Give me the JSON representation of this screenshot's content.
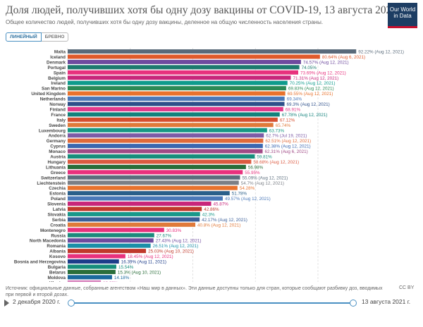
{
  "header": {
    "title": "Доля людей, получивших хотя бы одну дозу вакцины от COVID-19, 13 августа 2021 г.",
    "subtitle": "Общее количество людей, получивших хотя бы одну дозу вакцины, деленное на общую численность населения страны.",
    "logo_line1": "Our World",
    "logo_line2": "in Data"
  },
  "tabs": {
    "linear": "ЛИНЕЙНЫЙ",
    "log": "БРЕВНО"
  },
  "footer": {
    "source": "Источник: официальные данные, собранные агентством «Наш мир в данных». Эти данные доступны только для стран, которые сообщают разбивку доз, вводимых при первой и второй дозах.",
    "license": "CC BY"
  },
  "timeline": {
    "start_label": "2 декабря 2020 г.",
    "end_label": "13 августа 2021 г."
  },
  "chart_data": {
    "type": "bar",
    "orientation": "horizontal",
    "xlim": [
      0,
      95
    ],
    "x_ticks": [
      0,
      20,
      40,
      60,
      80
    ],
    "x_tick_labels": [
      "0%",
      "20%",
      "40%",
      "60%",
      "80%"
    ],
    "bars": [
      {
        "country": "Malta",
        "value": 92.22,
        "label": "92.22% (Aug 12, 2021)",
        "color": "#596a7a"
      },
      {
        "country": "Iceland",
        "value": 80.64,
        "label": "80.64% (Aug 6, 2021)",
        "color": "#e05a2b"
      },
      {
        "country": "Denmark",
        "value": 74.57,
        "label": "74.57% (Aug 12, 2021)",
        "color": "#6e4a9e"
      },
      {
        "country": "Portugal",
        "value": 74.05,
        "label": "74.05%",
        "color": "#1c7a6e"
      },
      {
        "country": "Spain",
        "value": 73.69,
        "label": "73.69% (Aug 12, 2021)",
        "color": "#e8317d"
      },
      {
        "country": "Belgium",
        "value": 71.31,
        "label": "71.31% (Aug 12, 2021)",
        "color": "#c8267a"
      },
      {
        "country": "Ireland",
        "value": 70.25,
        "label": "70.25% (Aug 12, 2021)",
        "color": "#0e9b8c"
      },
      {
        "country": "San Marino",
        "value": 69.83,
        "label": "69.83% (Aug 12, 2021)",
        "color": "#2c8a56"
      },
      {
        "country": "United Kingdom",
        "value": 69.55,
        "label": "69.55% (Aug 12, 2021)",
        "color": "#e8722d"
      },
      {
        "country": "Netherlands",
        "value": 69.34,
        "label": "69.34%",
        "color": "#4a78b8"
      },
      {
        "country": "Norway",
        "value": 69.3,
        "label": "69.3% (Aug 12, 2021)",
        "color": "#2d4f8a"
      },
      {
        "country": "Finland",
        "value": 68.91,
        "label": "68.91%",
        "color": "#e2388a"
      },
      {
        "country": "France",
        "value": 67.78,
        "label": "67.78% (Aug 12, 2021)",
        "color": "#13827c"
      },
      {
        "country": "Italy",
        "value": 67.12,
        "label": "67.12%",
        "color": "#d64f2f"
      },
      {
        "country": "Sweden",
        "value": 65.74,
        "label": "65.74%",
        "color": "#e07a3a"
      },
      {
        "country": "Luxembourg",
        "value": 63.73,
        "label": "63.73%",
        "color": "#169883"
      },
      {
        "country": "Andorra",
        "value": 62.7,
        "label": "62.7% (Jul 19, 2021)",
        "color": "#7d5ba6"
      },
      {
        "country": "Germany",
        "value": 62.51,
        "label": "62.51% (Aug 12, 2021)",
        "color": "#e06a3a"
      },
      {
        "country": "Cyprus",
        "value": 62.38,
        "label": "62.38% (Aug 12, 2021)",
        "color": "#3a67b0"
      },
      {
        "country": "Monaco",
        "value": 62.31,
        "label": "62.31% (Aug 6, 2021)",
        "color": "#a04a86"
      },
      {
        "country": "Austria",
        "value": 59.81,
        "label": "59.81%",
        "color": "#168e7c"
      },
      {
        "country": "Hungary",
        "value": 58.68,
        "label": "58.68% (Aug 12, 2021)",
        "color": "#dc5a40"
      },
      {
        "country": "Lithuania",
        "value": 56.98,
        "label": "56.98%",
        "color": "#2a6e3a"
      },
      {
        "country": "Greece",
        "value": 55.95,
        "label": "55.95%",
        "color": "#e8317d"
      },
      {
        "country": "Switzerland",
        "value": 55.09,
        "label": "55.09% (Aug 12, 2021)",
        "color": "#5b6d7d"
      },
      {
        "country": "Liechtenstein",
        "value": 54.7,
        "label": "54.7% (Aug 12, 2021)",
        "color": "#7b7f86"
      },
      {
        "country": "Czechia",
        "value": 54.28,
        "label": "54.28%",
        "color": "#e8722d"
      },
      {
        "country": "Estonia",
        "value": 51.78,
        "label": "51.78%",
        "color": "#2a5f8a"
      },
      {
        "country": "Poland",
        "value": 49.57,
        "label": "49.57% (Aug 12, 2021)",
        "color": "#4a78b8"
      },
      {
        "country": "Slovenia",
        "value": 45.87,
        "label": "45.87%",
        "color": "#c8267a"
      },
      {
        "country": "Latvia",
        "value": 42.86,
        "label": "42.86%",
        "color": "#c0392b"
      },
      {
        "country": "Slovakia",
        "value": 42.3,
        "label": "42.3%",
        "color": "#18988a"
      },
      {
        "country": "Serbia",
        "value": 42.17,
        "label": "42.17% (Aug 12, 2021)",
        "color": "#3a5f9a"
      },
      {
        "country": "Croatia",
        "value": 40.8,
        "label": "40.8% (Aug 12, 2021)",
        "color": "#e07a3a"
      },
      {
        "country": "Montenegro",
        "value": 30.83,
        "label": "30.83%",
        "color": "#e8317d"
      },
      {
        "country": "Russia",
        "value": 27.67,
        "label": "27.67%",
        "color": "#1c8a7c"
      },
      {
        "country": "North Macedonia",
        "value": 27.43,
        "label": "27.43% (Aug 12, 2021)",
        "color": "#6e4a9e"
      },
      {
        "country": "Romania",
        "value": 26.51,
        "label": "26.51% (Aug 12, 2021)",
        "color": "#1a8fa8"
      },
      {
        "country": "Albania",
        "value": 25.03,
        "label": "25.03% (Aug 10, 2021)",
        "color": "#c0392b"
      },
      {
        "country": "Kosovo",
        "value": 18.45,
        "label": "18.45% (Aug 12, 2021)",
        "color": "#e8317d"
      },
      {
        "country": "Bosnia and Herzegovina",
        "value": 16.39,
        "label": "16.39% (Aug 11, 2021)",
        "color": "#1d3d8a"
      },
      {
        "country": "Bulgaria",
        "value": 15.54,
        "label": "15.54%",
        "color": "#168e7c"
      },
      {
        "country": "Belarus",
        "value": 15.3,
        "label": "15.3% (Aug 10, 2021)",
        "color": "#2a6e3a"
      },
      {
        "country": "Moldova",
        "value": 14.18,
        "label": "14.18%",
        "color": "#1a6a9e"
      },
      {
        "country": "Ukraine",
        "value": 10.62,
        "label": "10.62%",
        "color": "#d57ab8"
      }
    ]
  }
}
